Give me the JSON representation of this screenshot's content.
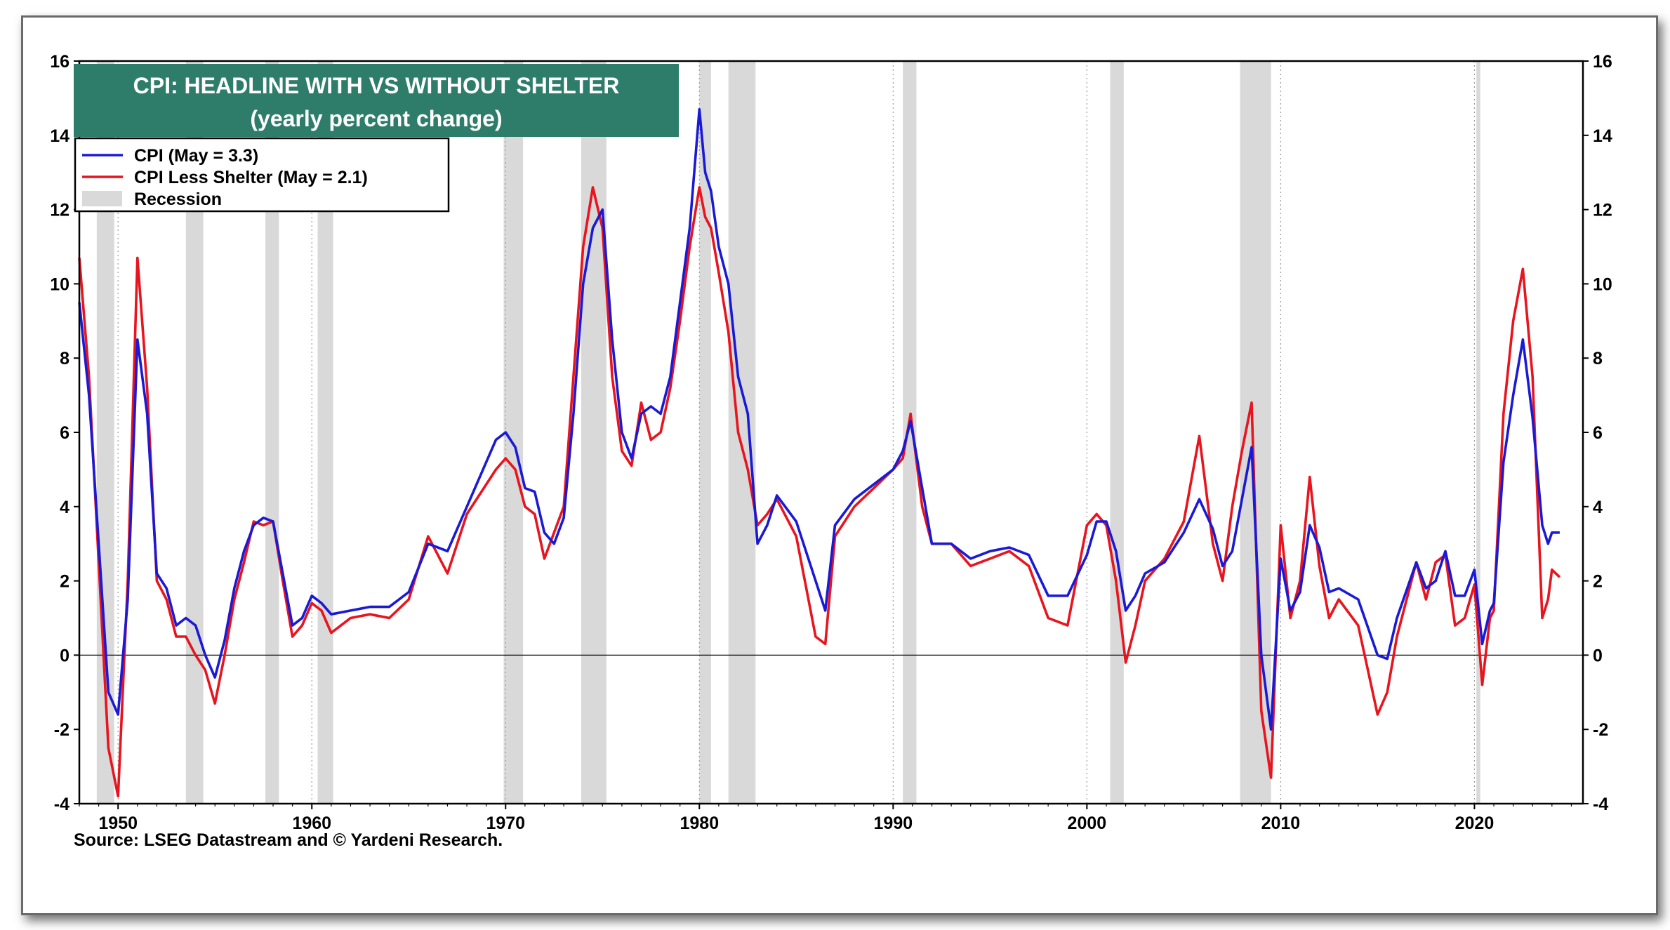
{
  "chart_data": {
    "type": "line",
    "title": "CPI: HEADLINE WITH VS WITHOUT SHELTER",
    "subtitle": "(yearly percent change)",
    "source": "Source: LSEG Datastream and © Yardeni Research.",
    "xlim": [
      1948,
      2025.6
    ],
    "ylim": [
      -4,
      16
    ],
    "x_ticks": [
      1950,
      1960,
      1970,
      1980,
      1990,
      2000,
      2010,
      2020
    ],
    "y_ticks": [
      -4,
      -2,
      0,
      2,
      4,
      6,
      8,
      10,
      12,
      14,
      16
    ],
    "grid": "vertical dotted",
    "legend_position": "top-left",
    "legend": [
      {
        "label": "CPI (May = 3.3)",
        "kind": "line",
        "color": "#1a1ad6"
      },
      {
        "label": "CPI Less  Shelter (May = 2.1)",
        "kind": "line",
        "color": "#e8141e"
      },
      {
        "label": "Recession",
        "kind": "band",
        "color": "#d9d9d9"
      }
    ],
    "recessions": [
      [
        1948.9,
        1949.8
      ],
      [
        1953.5,
        1954.4
      ],
      [
        1957.6,
        1958.3
      ],
      [
        1960.3,
        1961.1
      ],
      [
        1969.9,
        1970.9
      ],
      [
        1973.9,
        1975.2
      ],
      [
        1980.0,
        1980.6
      ],
      [
        1981.5,
        1982.9
      ],
      [
        1990.5,
        1991.2
      ],
      [
        2001.2,
        2001.9
      ],
      [
        2007.9,
        2009.5
      ],
      [
        2020.1,
        2020.3
      ]
    ],
    "series": [
      {
        "name": "CPI (May = 3.3)",
        "color": "#1a1ad6",
        "x": [
          1948.0,
          1948.5,
          1949.0,
          1949.5,
          1950.0,
          1950.5,
          1951.0,
          1951.5,
          1952.0,
          1952.5,
          1953.0,
          1953.5,
          1954.0,
          1954.5,
          1955.0,
          1955.5,
          1956.0,
          1956.5,
          1957.0,
          1957.5,
          1958.0,
          1958.5,
          1959.0,
          1959.5,
          1960.0,
          1960.5,
          1961.0,
          1962.0,
          1963.0,
          1964.0,
          1965.0,
          1966.0,
          1967.0,
          1968.0,
          1969.0,
          1969.5,
          1970.0,
          1970.5,
          1971.0,
          1971.5,
          1972.0,
          1972.5,
          1973.0,
          1973.5,
          1974.0,
          1974.5,
          1975.0,
          1975.5,
          1976.0,
          1976.5,
          1977.0,
          1977.5,
          1978.0,
          1978.5,
          1979.0,
          1979.5,
          1980.0,
          1980.3,
          1980.6,
          1981.0,
          1981.5,
          1982.0,
          1982.5,
          1983.0,
          1983.5,
          1984.0,
          1985.0,
          1986.0,
          1986.5,
          1987.0,
          1988.0,
          1989.0,
          1990.0,
          1990.5,
          1990.9,
          1991.5,
          1992.0,
          1993.0,
          1994.0,
          1995.0,
          1996.0,
          1997.0,
          1998.0,
          1999.0,
          2000.0,
          2000.5,
          2001.0,
          2001.5,
          2002.0,
          2002.5,
          2003.0,
          2004.0,
          2005.0,
          2005.8,
          2006.5,
          2007.0,
          2007.5,
          2008.0,
          2008.5,
          2009.0,
          2009.5,
          2010.0,
          2010.5,
          2011.0,
          2011.5,
          2012.0,
          2012.5,
          2013.0,
          2014.0,
          2015.0,
          2015.5,
          2016.0,
          2017.0,
          2017.5,
          2018.0,
          2018.5,
          2019.0,
          2019.5,
          2020.0,
          2020.4,
          2020.8,
          2021.0,
          2021.5,
          2022.0,
          2022.5,
          2023.0,
          2023.5,
          2023.8,
          2024.0,
          2024.4
        ],
        "values": [
          9.5,
          7.0,
          3.0,
          -1.0,
          -1.6,
          1.5,
          8.5,
          6.5,
          2.2,
          1.8,
          0.8,
          1.0,
          0.8,
          0.0,
          -0.6,
          0.4,
          1.8,
          2.8,
          3.5,
          3.7,
          3.6,
          2.2,
          0.8,
          1.0,
          1.6,
          1.4,
          1.1,
          1.2,
          1.3,
          1.3,
          1.7,
          3.0,
          2.8,
          4.0,
          5.2,
          5.8,
          6.0,
          5.6,
          4.5,
          4.4,
          3.3,
          3.0,
          3.7,
          6.5,
          10.0,
          11.5,
          12.0,
          8.5,
          6.0,
          5.3,
          6.5,
          6.7,
          6.5,
          7.5,
          9.5,
          11.5,
          14.7,
          13.0,
          12.5,
          11.0,
          10.0,
          7.5,
          6.5,
          3.0,
          3.5,
          4.3,
          3.6,
          2.0,
          1.2,
          3.5,
          4.2,
          4.6,
          5.0,
          5.5,
          6.3,
          4.5,
          3.0,
          3.0,
          2.6,
          2.8,
          2.9,
          2.7,
          1.6,
          1.6,
          2.7,
          3.6,
          3.6,
          2.8,
          1.2,
          1.6,
          2.2,
          2.5,
          3.3,
          4.2,
          3.4,
          2.4,
          2.8,
          4.2,
          5.6,
          0.0,
          -2.0,
          2.6,
          1.2,
          1.7,
          3.5,
          2.9,
          1.7,
          1.8,
          1.5,
          0.0,
          -0.1,
          1.0,
          2.5,
          1.8,
          2.0,
          2.8,
          1.6,
          1.6,
          2.3,
          0.3,
          1.2,
          1.4,
          5.2,
          7.0,
          8.5,
          6.4,
          3.5,
          3.0,
          3.3,
          3.3
        ]
      },
      {
        "name": "CPI Less  Shelter (May = 2.1)",
        "color": "#e8141e",
        "x": [
          1948.0,
          1948.5,
          1949.0,
          1949.5,
          1950.0,
          1950.5,
          1951.0,
          1951.5,
          1952.0,
          1952.5,
          1953.0,
          1953.5,
          1954.0,
          1954.5,
          1955.0,
          1955.5,
          1956.0,
          1956.5,
          1957.0,
          1957.5,
          1958.0,
          1958.5,
          1959.0,
          1959.5,
          1960.0,
          1960.5,
          1961.0,
          1962.0,
          1963.0,
          1964.0,
          1965.0,
          1966.0,
          1967.0,
          1968.0,
          1969.0,
          1969.5,
          1970.0,
          1970.5,
          1971.0,
          1971.5,
          1972.0,
          1972.5,
          1973.0,
          1973.5,
          1974.0,
          1974.5,
          1975.0,
          1975.5,
          1976.0,
          1976.5,
          1977.0,
          1977.5,
          1978.0,
          1978.5,
          1979.0,
          1979.5,
          1980.0,
          1980.3,
          1980.6,
          1981.0,
          1981.5,
          1982.0,
          1982.5,
          1983.0,
          1983.5,
          1984.0,
          1985.0,
          1986.0,
          1986.5,
          1987.0,
          1988.0,
          1989.0,
          1990.0,
          1990.5,
          1990.9,
          1991.5,
          1992.0,
          1993.0,
          1994.0,
          1995.0,
          1996.0,
          1997.0,
          1998.0,
          1999.0,
          2000.0,
          2000.5,
          2001.0,
          2001.5,
          2002.0,
          2002.5,
          2003.0,
          2004.0,
          2005.0,
          2005.8,
          2006.5,
          2007.0,
          2007.5,
          2008.0,
          2008.5,
          2009.0,
          2009.5,
          2010.0,
          2010.5,
          2011.0,
          2011.5,
          2012.0,
          2012.5,
          2013.0,
          2014.0,
          2015.0,
          2015.5,
          2016.0,
          2017.0,
          2017.5,
          2018.0,
          2018.5,
          2019.0,
          2019.5,
          2020.0,
          2020.4,
          2020.8,
          2021.0,
          2021.5,
          2022.0,
          2022.5,
          2023.0,
          2023.5,
          2023.8,
          2024.0,
          2024.4
        ],
        "values": [
          10.7,
          7.5,
          2.5,
          -2.5,
          -3.8,
          2.0,
          10.7,
          7.2,
          2.0,
          1.5,
          0.5,
          0.5,
          0.0,
          -0.4,
          -1.3,
          0.0,
          1.5,
          2.5,
          3.6,
          3.5,
          3.6,
          2.0,
          0.5,
          0.8,
          1.4,
          1.2,
          0.6,
          1.0,
          1.1,
          1.0,
          1.5,
          3.2,
          2.2,
          3.8,
          4.6,
          5.0,
          5.3,
          5.0,
          4.0,
          3.8,
          2.6,
          3.3,
          4.0,
          7.5,
          11.0,
          12.6,
          11.5,
          7.5,
          5.5,
          5.1,
          6.8,
          5.8,
          6.0,
          7.2,
          9.0,
          11.0,
          12.6,
          11.8,
          11.5,
          10.3,
          8.7,
          6.0,
          5.0,
          3.5,
          3.8,
          4.2,
          3.2,
          0.5,
          0.3,
          3.2,
          4.0,
          4.5,
          5.0,
          5.3,
          6.5,
          4.0,
          3.0,
          3.0,
          2.4,
          2.6,
          2.8,
          2.4,
          1.0,
          0.8,
          3.5,
          3.8,
          3.5,
          2.0,
          -0.2,
          0.8,
          2.0,
          2.6,
          3.6,
          5.9,
          3.0,
          2.0,
          4.0,
          5.5,
          6.8,
          -1.5,
          -3.3,
          3.5,
          1.0,
          2.0,
          4.8,
          2.4,
          1.0,
          1.5,
          0.8,
          -1.6,
          -1.0,
          0.5,
          2.5,
          1.5,
          2.5,
          2.7,
          0.8,
          1.0,
          1.9,
          -0.8,
          1.0,
          1.2,
          6.5,
          9.0,
          10.4,
          7.5,
          1.0,
          1.5,
          2.3,
          2.1
        ]
      }
    ]
  }
}
